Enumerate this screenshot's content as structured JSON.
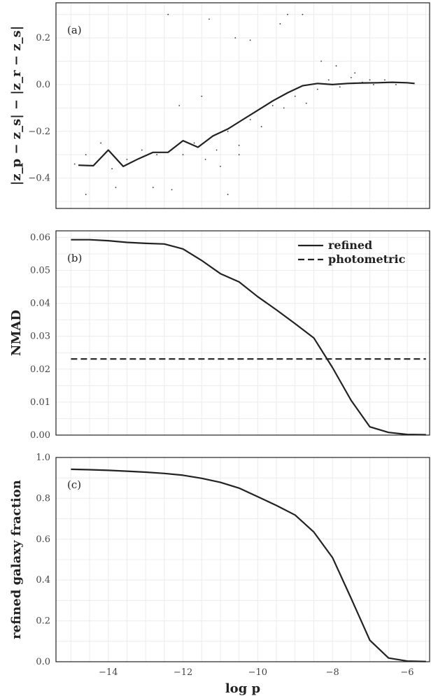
{
  "chart_data": [
    {
      "type": "scatter",
      "panel_label": "(a)",
      "ylabel": "|z_p − z_s| − |z_r − z_s|",
      "xlim": [
        -15.4,
        -5.4
      ],
      "ylim": [
        -0.53,
        0.35
      ],
      "yticks": [
        -0.4,
        -0.2,
        0.0,
        0.2
      ],
      "ytick_labels": [
        "−0.4",
        "−0.2",
        "0.0",
        "0.2"
      ],
      "grid": true,
      "series": [
        {
          "style": "solid",
          "x": [
            -14.8,
            -14.4,
            -14.0,
            -13.6,
            -13.2,
            -12.8,
            -12.4,
            -12.0,
            -11.6,
            -11.2,
            -10.8,
            -10.4,
            -10.0,
            -9.6,
            -9.2,
            -8.8,
            -8.4,
            -8.0,
            -7.6,
            -7.2,
            -6.8,
            -6.4,
            -6.0,
            -5.8
          ],
          "y": [
            -0.345,
            -0.347,
            -0.28,
            -0.35,
            -0.318,
            -0.29,
            -0.29,
            -0.24,
            -0.268,
            -0.22,
            -0.19,
            -0.15,
            -0.11,
            -0.07,
            -0.035,
            -0.005,
            0.005,
            0.0,
            0.005,
            0.007,
            0.008,
            0.01,
            0.008,
            0.005
          ]
        }
      ],
      "scatter_points": {
        "x": [
          -14.9,
          -14.6,
          -14.2,
          -13.9,
          -13.5,
          -13.1,
          -12.7,
          -12.3,
          -12.0,
          -11.7,
          -11.4,
          -11.1,
          -10.8,
          -10.5,
          -10.2,
          -9.9,
          -9.6,
          -9.3,
          -9.0,
          -8.7,
          -8.4,
          -8.1,
          -7.8,
          -7.5,
          -7.2,
          -6.9,
          -6.6,
          -6.3,
          -12.4,
          -11.3,
          -10.2,
          -9.2,
          -8.8,
          -12.8,
          -13.8,
          -14.6,
          -10.5,
          -11.5,
          -12.1,
          -10.6,
          -9.4,
          -8.3,
          -7.9,
          -7.4,
          -7.0,
          -6.5,
          -11.0,
          -10.8
        ],
        "y": [
          -0.34,
          -0.3,
          -0.25,
          -0.36,
          -0.32,
          -0.28,
          -0.3,
          -0.45,
          -0.3,
          -0.25,
          -0.32,
          -0.28,
          -0.2,
          -0.26,
          -0.15,
          -0.18,
          -0.09,
          -0.1,
          -0.05,
          -0.08,
          -0.02,
          0.02,
          -0.01,
          0.03,
          0.01,
          0.0,
          0.02,
          0.0,
          0.3,
          0.28,
          0.19,
          0.3,
          0.3,
          -0.44,
          -0.44,
          -0.47,
          -0.3,
          -0.05,
          -0.09,
          0.2,
          0.26,
          0.1,
          0.08,
          0.05,
          0.02,
          0.01,
          -0.35,
          -0.47
        ]
      }
    },
    {
      "type": "line",
      "panel_label": "(b)",
      "ylabel": "NMAD",
      "xlim": [
        -15.4,
        -5.4
      ],
      "ylim": [
        0.0,
        0.062
      ],
      "yticks": [
        0.0,
        0.01,
        0.02,
        0.03,
        0.04,
        0.05,
        0.06
      ],
      "ytick_labels": [
        "0.00",
        "0.01",
        "0.02",
        "0.03",
        "0.04",
        "0.05",
        "0.06"
      ],
      "grid": true,
      "legend": "top-right",
      "series": [
        {
          "name": "refined",
          "style": "solid",
          "x": [
            -15.0,
            -14.5,
            -14.0,
            -13.5,
            -13.0,
            -12.5,
            -12.0,
            -11.5,
            -11.0,
            -10.5,
            -10.0,
            -9.5,
            -9.0,
            -8.5,
            -8.0,
            -7.5,
            -7.0,
            -6.5,
            -6.0,
            -5.5
          ],
          "y": [
            0.0593,
            0.0593,
            0.059,
            0.0585,
            0.0582,
            0.058,
            0.0565,
            0.053,
            0.049,
            0.0465,
            0.042,
            0.038,
            0.0338,
            0.0295,
            0.0205,
            0.0105,
            0.0025,
            0.0008,
            0.0002,
            0.0001
          ]
        },
        {
          "name": "photometric",
          "style": "dashed",
          "x": [
            -15.0,
            -5.5
          ],
          "y": [
            0.0231,
            0.0231
          ]
        }
      ]
    },
    {
      "type": "line",
      "panel_label": "(c)",
      "ylabel": "refined galaxy fraction",
      "xlabel": "log p",
      "xlim": [
        -15.4,
        -5.4
      ],
      "ylim": [
        0.0,
        1.0
      ],
      "xticks": [
        -14,
        -12,
        -10,
        -8,
        -6
      ],
      "xtick_labels": [
        "−14",
        "−12",
        "−10",
        "−8",
        "−6"
      ],
      "yticks": [
        0.0,
        0.2,
        0.4,
        0.6,
        0.8,
        1.0
      ],
      "ytick_labels": [
        "0.0",
        "0.2",
        "0.4",
        "0.6",
        "0.8",
        "1.0"
      ],
      "grid": true,
      "series": [
        {
          "style": "solid",
          "x": [
            -15.0,
            -14.5,
            -14.0,
            -13.5,
            -13.0,
            -12.5,
            -12.0,
            -11.5,
            -11.0,
            -10.5,
            -10.0,
            -9.5,
            -9.0,
            -8.5,
            -8.0,
            -7.5,
            -7.0,
            -6.5,
            -6.0,
            -5.5
          ],
          "y": [
            0.942,
            0.94,
            0.937,
            0.933,
            0.928,
            0.922,
            0.913,
            0.898,
            0.878,
            0.85,
            0.808,
            0.765,
            0.718,
            0.635,
            0.51,
            0.31,
            0.105,
            0.018,
            0.003,
            0.001
          ]
        }
      ]
    }
  ]
}
